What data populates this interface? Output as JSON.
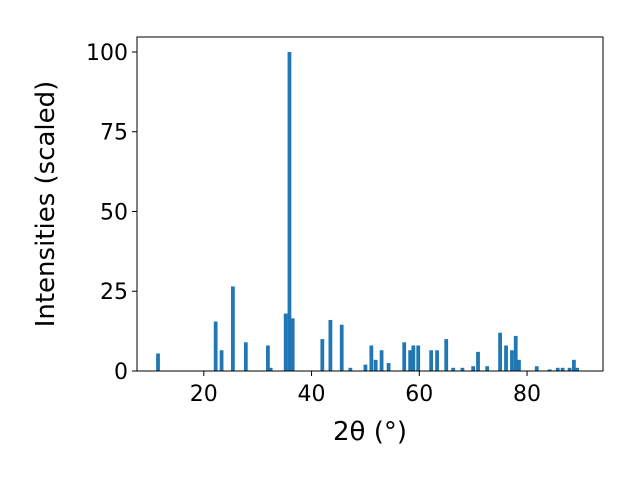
{
  "chart_data": {
    "type": "bar",
    "xlabel": "2θ (°)",
    "ylabel": "Intensities (scaled)",
    "x": [
      11.5,
      22.2,
      23.3,
      25.4,
      27.8,
      31.9,
      32.4,
      35.2,
      35.9,
      36.5,
      42.0,
      43.5,
      45.6,
      47.2,
      50.0,
      51.1,
      51.9,
      53.0,
      54.3,
      57.2,
      58.3,
      58.9,
      59.8,
      62.2,
      63.3,
      65.0,
      66.3,
      68.0,
      70.0,
      70.9,
      72.6,
      75.0,
      76.1,
      77.2,
      77.9,
      78.5,
      81.8,
      84.2,
      85.7,
      86.6,
      87.9,
      88.7,
      89.3
    ],
    "values": [
      5.5,
      15.5,
      6.5,
      26.5,
      9,
      8,
      1,
      18,
      100,
      16.5,
      10,
      16,
      14.5,
      1,
      2,
      8,
      3.5,
      6.5,
      2.5,
      9,
      6.5,
      8,
      8,
      6.5,
      6.5,
      10,
      1,
      1,
      1.5,
      6,
      1.5,
      12,
      8,
      6.5,
      11,
      3.5,
      1.5,
      0.5,
      1,
      1,
      1,
      3.5,
      1
    ],
    "color": "#1f77b4",
    "xlim": [
      7.6,
      94.1
    ],
    "xticks": [
      20,
      40,
      60,
      80
    ],
    "ylim": [
      0,
      104.7
    ],
    "yticks": [
      0,
      25,
      50,
      75,
      100
    ]
  }
}
